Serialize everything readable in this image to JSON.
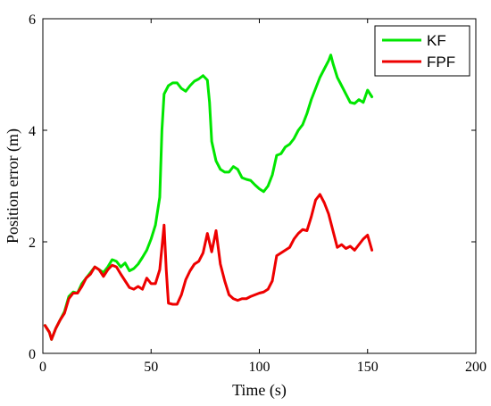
{
  "chart_data": {
    "type": "line",
    "title": "",
    "xlabel": "Time (s)",
    "ylabel": "Position error (m)",
    "xlim": [
      0,
      200
    ],
    "ylim": [
      0,
      6
    ],
    "xticks": [
      0,
      50,
      100,
      150,
      200
    ],
    "yticks": [
      0,
      2,
      4,
      6
    ],
    "grid": false,
    "legend_position": "top-right",
    "series": [
      {
        "name": "KF",
        "color": "#00e600",
        "points": [
          [
            1,
            0.5
          ],
          [
            3,
            0.38
          ],
          [
            4,
            0.25
          ],
          [
            6,
            0.45
          ],
          [
            8,
            0.6
          ],
          [
            10,
            0.75
          ],
          [
            12,
            1.02
          ],
          [
            14,
            1.1
          ],
          [
            16,
            1.08
          ],
          [
            18,
            1.25
          ],
          [
            20,
            1.35
          ],
          [
            22,
            1.45
          ],
          [
            24,
            1.55
          ],
          [
            26,
            1.5
          ],
          [
            28,
            1.45
          ],
          [
            30,
            1.55
          ],
          [
            32,
            1.68
          ],
          [
            34,
            1.65
          ],
          [
            36,
            1.55
          ],
          [
            38,
            1.62
          ],
          [
            40,
            1.48
          ],
          [
            42,
            1.52
          ],
          [
            44,
            1.6
          ],
          [
            46,
            1.72
          ],
          [
            48,
            1.85
          ],
          [
            50,
            2.05
          ],
          [
            52,
            2.3
          ],
          [
            54,
            2.8
          ],
          [
            55,
            4.0
          ],
          [
            56,
            4.65
          ],
          [
            58,
            4.8
          ],
          [
            60,
            4.85
          ],
          [
            62,
            4.85
          ],
          [
            64,
            4.75
          ],
          [
            66,
            4.7
          ],
          [
            68,
            4.8
          ],
          [
            70,
            4.88
          ],
          [
            72,
            4.92
          ],
          [
            74,
            4.98
          ],
          [
            76,
            4.9
          ],
          [
            77,
            4.5
          ],
          [
            78,
            3.8
          ],
          [
            80,
            3.45
          ],
          [
            82,
            3.3
          ],
          [
            84,
            3.25
          ],
          [
            86,
            3.25
          ],
          [
            88,
            3.35
          ],
          [
            90,
            3.3
          ],
          [
            92,
            3.15
          ],
          [
            94,
            3.12
          ],
          [
            96,
            3.1
          ],
          [
            98,
            3.02
          ],
          [
            100,
            2.95
          ],
          [
            102,
            2.9
          ],
          [
            104,
            3.0
          ],
          [
            106,
            3.2
          ],
          [
            108,
            3.55
          ],
          [
            110,
            3.58
          ],
          [
            112,
            3.7
          ],
          [
            114,
            3.75
          ],
          [
            116,
            3.85
          ],
          [
            118,
            4.0
          ],
          [
            120,
            4.1
          ],
          [
            122,
            4.3
          ],
          [
            124,
            4.55
          ],
          [
            126,
            4.75
          ],
          [
            128,
            4.95
          ],
          [
            130,
            5.1
          ],
          [
            132,
            5.25
          ],
          [
            133,
            5.35
          ],
          [
            134,
            5.2
          ],
          [
            136,
            4.95
          ],
          [
            138,
            4.8
          ],
          [
            140,
            4.65
          ],
          [
            142,
            4.5
          ],
          [
            144,
            4.48
          ],
          [
            146,
            4.55
          ],
          [
            148,
            4.5
          ],
          [
            150,
            4.72
          ],
          [
            152,
            4.6
          ]
        ]
      },
      {
        "name": "FPF",
        "color": "#ee0000",
        "points": [
          [
            1,
            0.5
          ],
          [
            3,
            0.38
          ],
          [
            4,
            0.25
          ],
          [
            6,
            0.45
          ],
          [
            8,
            0.6
          ],
          [
            10,
            0.72
          ],
          [
            12,
            0.98
          ],
          [
            14,
            1.08
          ],
          [
            16,
            1.08
          ],
          [
            18,
            1.2
          ],
          [
            20,
            1.35
          ],
          [
            22,
            1.42
          ],
          [
            24,
            1.55
          ],
          [
            26,
            1.5
          ],
          [
            28,
            1.38
          ],
          [
            30,
            1.5
          ],
          [
            32,
            1.58
          ],
          [
            34,
            1.55
          ],
          [
            36,
            1.42
          ],
          [
            38,
            1.3
          ],
          [
            40,
            1.18
          ],
          [
            42,
            1.15
          ],
          [
            44,
            1.2
          ],
          [
            46,
            1.15
          ],
          [
            48,
            1.35
          ],
          [
            50,
            1.25
          ],
          [
            52,
            1.25
          ],
          [
            54,
            1.5
          ],
          [
            56,
            2.3
          ],
          [
            57,
            1.5
          ],
          [
            58,
            0.9
          ],
          [
            60,
            0.88
          ],
          [
            62,
            0.88
          ],
          [
            64,
            1.05
          ],
          [
            66,
            1.32
          ],
          [
            68,
            1.48
          ],
          [
            70,
            1.6
          ],
          [
            72,
            1.65
          ],
          [
            74,
            1.8
          ],
          [
            76,
            2.15
          ],
          [
            78,
            1.82
          ],
          [
            80,
            2.2
          ],
          [
            82,
            1.6
          ],
          [
            84,
            1.3
          ],
          [
            86,
            1.05
          ],
          [
            88,
            0.98
          ],
          [
            90,
            0.95
          ],
          [
            92,
            0.98
          ],
          [
            94,
            0.98
          ],
          [
            96,
            1.02
          ],
          [
            98,
            1.05
          ],
          [
            100,
            1.08
          ],
          [
            102,
            1.1
          ],
          [
            104,
            1.15
          ],
          [
            106,
            1.3
          ],
          [
            108,
            1.75
          ],
          [
            110,
            1.8
          ],
          [
            112,
            1.85
          ],
          [
            114,
            1.9
          ],
          [
            116,
            2.05
          ],
          [
            118,
            2.15
          ],
          [
            120,
            2.22
          ],
          [
            122,
            2.2
          ],
          [
            124,
            2.45
          ],
          [
            126,
            2.75
          ],
          [
            128,
            2.85
          ],
          [
            130,
            2.7
          ],
          [
            132,
            2.5
          ],
          [
            134,
            2.2
          ],
          [
            136,
            1.9
          ],
          [
            138,
            1.95
          ],
          [
            140,
            1.88
          ],
          [
            142,
            1.92
          ],
          [
            144,
            1.85
          ],
          [
            146,
            1.95
          ],
          [
            148,
            2.05
          ],
          [
            150,
            2.12
          ],
          [
            152,
            1.85
          ]
        ]
      }
    ]
  }
}
